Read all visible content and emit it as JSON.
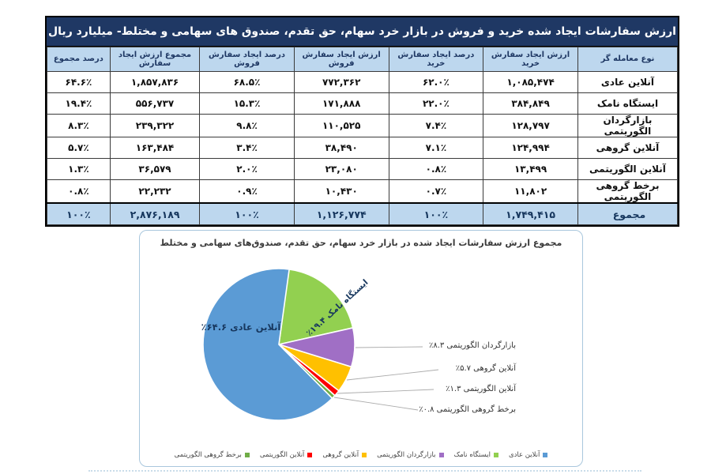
{
  "table": {
    "title": "ارزش سفارشات ایجاد شده خرید و فروش در بازار خرد سهام، حق تقدم، صندوق های سهامی و مختلط- میلیارد ریال",
    "columns": [
      "نوع معامله گر",
      "ارزش ایجاد سفارش خرید",
      "درصد ایجاد سفارش خرید",
      "ارزش ایجاد سفارش فروش",
      "درصد ایجاد سفارش فروش",
      "مجموع ارزش ایجاد سفارش",
      "درصد مجموع"
    ],
    "rows": [
      {
        "cells": [
          "آنلاین عادی",
          "۱,۰۸۵,۴۷۴",
          "۶۲.۰٪",
          "۷۷۲,۳۶۲",
          "۶۸.۵٪",
          "۱,۸۵۷,۸۳۶",
          "۶۴.۶٪"
        ]
      },
      {
        "cells": [
          "ایستگاه نامک",
          "۳۸۴,۸۴۹",
          "۲۲.۰٪",
          "۱۷۱,۸۸۸",
          "۱۵.۳٪",
          "۵۵۶,۷۳۷",
          "۱۹.۴٪"
        ]
      },
      {
        "cells": [
          "بازارگردان الگوریتمی",
          "۱۲۸,۷۹۷",
          "۷.۴٪",
          "۱۱۰,۵۲۵",
          "۹.۸٪",
          "۲۳۹,۳۲۲",
          "۸.۳٪"
        ]
      },
      {
        "cells": [
          "آنلاین گروهی",
          "۱۲۴,۹۹۴",
          "۷.۱٪",
          "۳۸,۴۹۰",
          "۳.۴٪",
          "۱۶۳,۴۸۴",
          "۵.۷٪"
        ]
      },
      {
        "cells": [
          "آنلاین الگوریتمی",
          "۱۳,۴۹۹",
          "۰.۸٪",
          "۲۳,۰۸۰",
          "۲.۰٪",
          "۳۶,۵۷۹",
          "۱.۳٪"
        ]
      },
      {
        "cells": [
          "برخط گروهی الگوریتمی",
          "۱۱,۸۰۲",
          "۰.۷٪",
          "۱۰,۴۳۰",
          "۰.۹٪",
          "۲۲,۲۳۲",
          "۰.۸٪"
        ]
      }
    ],
    "total": {
      "cells": [
        "مجموع",
        "۱,۷۴۹,۴۱۵",
        "۱۰۰٪",
        "۱,۱۲۶,۷۷۴",
        "۱۰۰٪",
        "۲,۸۷۶,۱۸۹",
        "۱۰۰٪"
      ]
    },
    "colors": {
      "header_bg": "#1F3864",
      "subheader_bg": "#BDD7EE",
      "header_text": "#FFFFFF"
    }
  },
  "chart_data": {
    "type": "pie",
    "title": "مجموع ارزش سفارشات ایجاد شده در بازار خرد سهام، حق تقدم، صندوق‌های سهامی و مختلط",
    "direction": "clockwise",
    "start_angle_deg": 7.5,
    "slices": [
      {
        "label": "ایستگاه نامک",
        "value": 19.4,
        "color": "#92D050"
      },
      {
        "label": "بازارگردان الگوریتمی",
        "value": 8.3,
        "color": "#A06FC5"
      },
      {
        "label": "آنلاین گروهی",
        "value": 5.7,
        "color": "#FFC000"
      },
      {
        "label": "آنلاین الگوریتمی",
        "value": 1.3,
        "color": "#FF0000"
      },
      {
        "label": "برخط گروهی الگوریتمی",
        "value": 0.8,
        "color": "#70AD47"
      },
      {
        "label": "آنلاین عادی",
        "value": 64.6,
        "color": "#5B9BD5"
      }
    ],
    "inner_labels": [
      "آنلاین عادی ۶۴.۶٪",
      "ایستگاه نامک ۱۹.۴٪"
    ],
    "callouts": [
      "بازارگردان الگوریتمی ۸.۳٪",
      "آنلاین گروهی ۵.۷٪",
      "آنلاین الگوریتمی ۱.۳٪",
      "برخط گروهی الگوریتمی ۰.۸٪"
    ],
    "legend": [
      {
        "label": "آنلاین عادی",
        "color": "#5B9BD5"
      },
      {
        "label": "ایستگاه نامک",
        "color": "#92D050"
      },
      {
        "label": "بازارگردان الگوریتمی",
        "color": "#A06FC5"
      },
      {
        "label": "آنلاین گروهی",
        "color": "#FFC000"
      },
      {
        "label": "آنلاین الگوریتمی",
        "color": "#FF0000"
      },
      {
        "label": "برخط گروهی الگوریتمی",
        "color": "#70AD47"
      }
    ],
    "legend_position": "bottom"
  }
}
